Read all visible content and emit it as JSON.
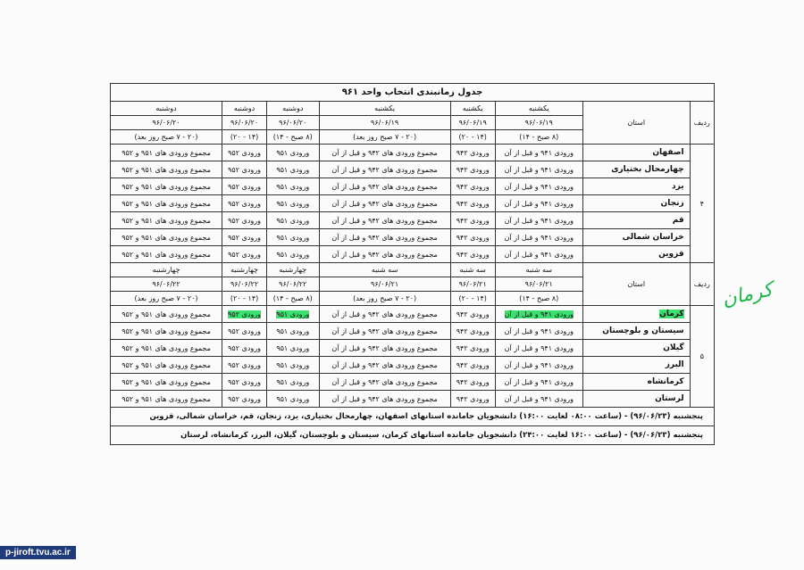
{
  "title": "جدول زمانبندی انتخاب واحد ۹۶۱",
  "header_labels": {
    "row": "ردیف",
    "province": "استان"
  },
  "block1": {
    "row_no": "۴",
    "cols": [
      {
        "day": "یکشنبه",
        "date": "۹۶/۰۶/۱۹",
        "time": "(۸ صبح - ۱۴)"
      },
      {
        "day": "یکشنبه",
        "date": "۹۶/۰۶/۱۹",
        "time": "(۱۴ - ۲۰)"
      },
      {
        "day": "یکشنبه",
        "date": "۹۶/۰۶/۱۹",
        "time": "(۲۰ - ۷ صبح روز بعد)"
      },
      {
        "day": "دوشنبه",
        "date": "۹۶/۰۶/۲۰",
        "time": "(۸ صبح - ۱۴)"
      },
      {
        "day": "دوشنبه",
        "date": "۹۶/۰۶/۲۰",
        "time": "(۱۴ - ۲۰)"
      },
      {
        "day": "دوشنبه",
        "date": "۹۶/۰۶/۲۰",
        "time": "(۲۰ - ۷ صبح روز بعد)"
      }
    ],
    "provinces": [
      "اصفهان",
      "چهارمحال بختیاری",
      "یزد",
      "زنجان",
      "قم",
      "خراسان شمالی",
      "قزوین"
    ]
  },
  "block2": {
    "row_no": "۵",
    "cols": [
      {
        "day": "سه شنبه",
        "date": "۹۶/۰۶/۲۱",
        "time": "(۸ صبح - ۱۴)"
      },
      {
        "day": "سه شنبه",
        "date": "۹۶/۰۶/۲۱",
        "time": "(۱۴ - ۲۰)"
      },
      {
        "day": "سه شنبه",
        "date": "۹۶/۰۶/۲۱",
        "time": "(۲۰ - ۷ صبح روز بعد)"
      },
      {
        "day": "چهارشنبه",
        "date": "۹۶/۰۶/۲۲",
        "time": "(۸ صبح - ۱۴)"
      },
      {
        "day": "چهارشنبه",
        "date": "۹۶/۰۶/۲۲",
        "time": "(۱۴ - ۲۰)"
      },
      {
        "day": "چهارشنبه",
        "date": "۹۶/۰۶/۲۲",
        "time": "(۲۰ - ۷ صبح روز بعد)"
      }
    ],
    "provinces": [
      "کرمان",
      "سیستان و بلوچستان",
      "گیلان",
      "البرز",
      "کرمانشاه",
      "لرستان"
    ]
  },
  "cells": [
    "ورودی ۹۴۱ و قبل از آن",
    "ورودی ۹۴۲",
    "مجموع ورودی های ۹۴۲ و قبل از آن",
    "ورودی ۹۵۱",
    "ورودی ۹۵۲",
    "مجموع ورودی های ۹۵۱ و ۹۵۲"
  ],
  "footer": [
    "پنجشنبه (۹۶/۰۶/۲۳) - (ساعت ۰۸:۰۰ لغایت ۱۶:۰۰) دانشجویان جامانده استانهای اصفهان، چهارمحال بختیاری، یزد، زنجان، قم، خراسان شمالی، قزوین",
    "پنجشنبه (۹۶/۰۶/۲۳) - (ساعت ۱۶:۰۰ لغایت ۲۴:۰۰) دانشجویان جامانده استانهای کرمان، سیستان و بلوچستان، گیلان، البرز، کرمانشاه، لرستان"
  ],
  "handwriting": "کرمان",
  "highlight_color": "#3be070",
  "url": "p-jiroft.tvu.ac.ir"
}
